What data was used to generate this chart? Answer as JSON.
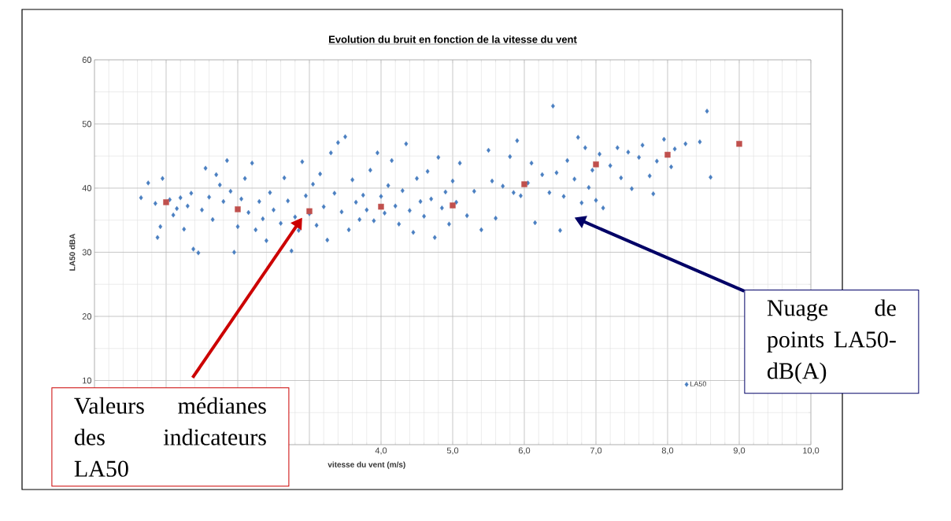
{
  "chart_data": {
    "type": "scatter",
    "title": "Evolution du bruit en fonction de la vitesse du vent",
    "xlabel": "vitesse du vent (m/s)",
    "ylabel": "LA50 dBA",
    "xlim": [
      0,
      10
    ],
    "ylim": [
      0,
      60
    ],
    "xticks": [
      {
        "value": 0,
        "label": null
      },
      {
        "value": 1,
        "label": null
      },
      {
        "value": 2,
        "label": null
      },
      {
        "value": 3,
        "label": null
      },
      {
        "value": 4,
        "label": "4,0"
      },
      {
        "value": 5,
        "label": "5,0"
      },
      {
        "value": 6,
        "label": "6,0"
      },
      {
        "value": 7,
        "label": "7,0"
      },
      {
        "value": 8,
        "label": "8,0"
      },
      {
        "value": 9,
        "label": "9,0"
      },
      {
        "value": 10,
        "label": "10,0"
      }
    ],
    "yticks": [
      {
        "value": 0,
        "label": null
      },
      10,
      20,
      30,
      40,
      50,
      60
    ],
    "grid": true,
    "legend": "bottom right",
    "series": [
      {
        "name": "LA50",
        "color": "#4a7fc1",
        "marker": "diamond",
        "x": [
          0.65,
          0.75,
          0.85,
          0.88,
          0.92,
          0.95,
          1.05,
          1.1,
          1.15,
          1.2,
          1.25,
          1.3,
          1.35,
          1.38,
          1.45,
          1.5,
          1.55,
          1.6,
          1.65,
          1.7,
          1.75,
          1.8,
          1.85,
          1.9,
          1.95,
          2.0,
          2.05,
          2.1,
          2.15,
          2.2,
          2.25,
          2.3,
          2.35,
          2.4,
          2.45,
          2.5,
          2.6,
          2.65,
          2.7,
          2.75,
          2.8,
          2.85,
          2.9,
          2.95,
          3.0,
          3.05,
          3.1,
          3.15,
          3.2,
          3.25,
          3.3,
          3.35,
          3.4,
          3.45,
          3.5,
          3.55,
          3.6,
          3.65,
          3.7,
          3.75,
          3.8,
          3.85,
          3.9,
          3.95,
          4.0,
          4.05,
          4.1,
          4.15,
          4.2,
          4.25,
          4.3,
          4.35,
          4.4,
          4.45,
          4.5,
          4.55,
          4.6,
          4.65,
          4.7,
          4.75,
          4.8,
          4.85,
          4.9,
          4.95,
          5.0,
          5.05,
          5.1,
          5.2,
          5.3,
          5.4,
          5.5,
          5.55,
          5.6,
          5.7,
          5.8,
          5.85,
          5.9,
          5.95,
          6.05,
          6.1,
          6.15,
          6.25,
          6.35,
          6.4,
          6.45,
          6.5,
          6.55,
          6.6,
          6.7,
          6.75,
          6.8,
          6.85,
          6.9,
          6.95,
          7.0,
          7.05,
          7.1,
          7.2,
          7.3,
          7.35,
          7.45,
          7.5,
          7.6,
          7.65,
          7.75,
          7.8,
          7.85,
          7.95,
          8.05,
          8.1,
          8.25,
          8.45,
          8.55,
          8.6
        ],
        "values": [
          38.5,
          40.8,
          37.6,
          32.3,
          34,
          41.5,
          38.2,
          35.8,
          36.8,
          38.5,
          33.6,
          37.2,
          39.2,
          30.5,
          29.9,
          36.6,
          43.1,
          38.6,
          35.1,
          42.1,
          40.5,
          37.9,
          44.3,
          39.5,
          30,
          34,
          38.3,
          41.5,
          36.2,
          43.9,
          33.5,
          37.9,
          35.2,
          31.8,
          39.3,
          36.6,
          34.5,
          41.6,
          38,
          30.2,
          35.5,
          33.4,
          44.1,
          38.8,
          36,
          40.6,
          34.2,
          42.2,
          37.1,
          31.9,
          45.5,
          39.2,
          47.1,
          36.3,
          48,
          33.5,
          41.3,
          37.8,
          35.1,
          38.9,
          36.6,
          42.8,
          34.9,
          45.5,
          38.7,
          36.1,
          40.4,
          44.3,
          37.2,
          34.4,
          39.6,
          46.9,
          36.5,
          33.1,
          41.5,
          37.9,
          35.6,
          42.6,
          38.3,
          32.3,
          44.8,
          36.9,
          39.4,
          34.4,
          41.1,
          37.8,
          43.9,
          35.7,
          39.5,
          33.5,
          45.9,
          41.1,
          35.3,
          40.3,
          44.9,
          39.3,
          47.4,
          38.8,
          40.8,
          43.9,
          34.6,
          42.1,
          39.3,
          52.8,
          42.4,
          33.4,
          38.7,
          44.3,
          41.4,
          47.9,
          37.7,
          46.3,
          40.1,
          42.8,
          38.1,
          45.3,
          36.9,
          43.5,
          46.3,
          41.6,
          45.6,
          39.9,
          44.8,
          46.7,
          41.9,
          39.1,
          44.2,
          47.6,
          43.3,
          46.1,
          46.9,
          47.2,
          52,
          41.7
        ]
      },
      {
        "color": "#c0504d",
        "marker": "square",
        "x": [
          1,
          2,
          3,
          4,
          5,
          6,
          7,
          8,
          9
        ],
        "values": [
          37.8,
          36.7,
          36.4,
          37.1,
          37.3,
          40.6,
          43.7,
          45.2,
          46.9
        ]
      }
    ],
    "annotations": [
      "Valeurs médianes des indicateurs LA50",
      "Nuage de points LA50-dB(A)"
    ]
  }
}
